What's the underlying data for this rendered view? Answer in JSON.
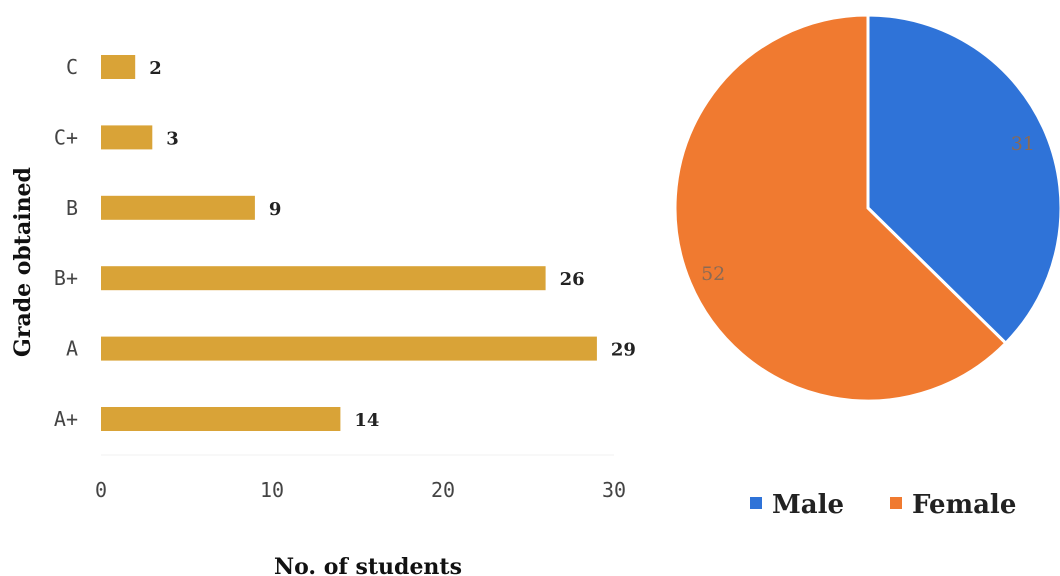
{
  "chart_data": [
    {
      "type": "bar",
      "orientation": "horizontal",
      "categories": [
        "A+",
        "A",
        "B+",
        "B",
        "C+",
        "C"
      ],
      "values": [
        14,
        29,
        26,
        9,
        3,
        2
      ],
      "xlabel": "No. of students",
      "ylabel": "Grade obtained",
      "xlim": [
        0,
        30
      ],
      "xticks": [
        0,
        10,
        20,
        30
      ],
      "bar_color": "#d9a337",
      "data_labels": true,
      "grid": false
    },
    {
      "type": "pie",
      "labels": [
        "Male",
        "Female"
      ],
      "values": [
        31,
        52
      ],
      "colors": [
        "#2f73d8",
        "#f07a30"
      ],
      "legend_position": "bottom",
      "data_labels": true
    }
  ]
}
